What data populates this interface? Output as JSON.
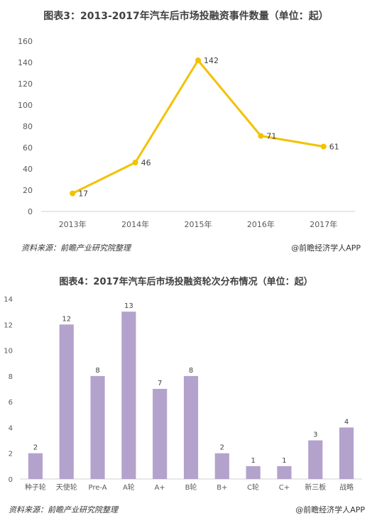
{
  "chart_data": [
    {
      "type": "line",
      "title": "图表3：2013-2017年汽车后市场投融资事件数量（单位：起）",
      "categories": [
        "2013年",
        "2014年",
        "2015年",
        "2016年",
        "2017年"
      ],
      "values": [
        17,
        46,
        142,
        71,
        61
      ],
      "data_labels": [
        "17",
        "46",
        "142",
        "71",
        "61"
      ],
      "ylim": [
        0,
        160
      ],
      "yticks": [
        "0",
        "20",
        "40",
        "60",
        "80",
        "100",
        "120",
        "140",
        "160"
      ],
      "color": "#f2c200",
      "grid": false,
      "source": "资料来源：前瞻产业研究院整理",
      "brand": "@前瞻经济学人APP"
    },
    {
      "type": "bar",
      "title": "图表4：2017年汽车后市场投融资轮次分布情况（单位：起）",
      "categories": [
        "种子轮",
        "天使轮",
        "Pre-A",
        "A轮",
        "A+",
        "B轮",
        "B+",
        "C轮",
        "C+",
        "新三板",
        "战略"
      ],
      "values": [
        2,
        12,
        8,
        13,
        7,
        8,
        2,
        1,
        1,
        3,
        4
      ],
      "data_labels": [
        "2",
        "12",
        "8",
        "13",
        "7",
        "8",
        "2",
        "1",
        "1",
        "3",
        "4"
      ],
      "ylim": [
        0,
        14
      ],
      "yticks": [
        "0",
        "2",
        "4",
        "6",
        "8",
        "10",
        "12",
        "14"
      ],
      "color": "#b3a2cc",
      "grid": false,
      "source": "资料来源：前瞻产业研究院整理",
      "brand": "@前瞻经济学人APP"
    }
  ]
}
